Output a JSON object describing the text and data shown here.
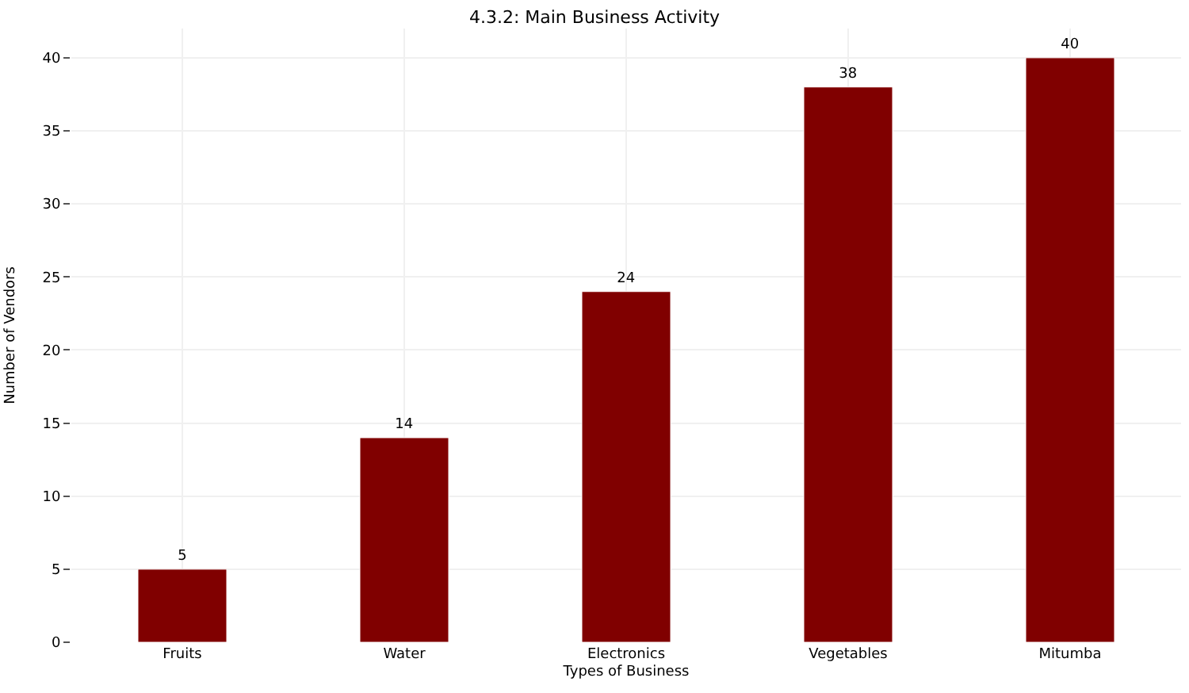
{
  "chart_data": {
    "type": "bar",
    "title": "4.3.2: Main Business Activity",
    "xlabel": "Types of Business",
    "ylabel": "Number of Vendors",
    "categories": [
      "Fruits",
      "Water",
      "Electronics",
      "Vegetables",
      "Mitumba"
    ],
    "values": [
      5,
      14,
      24,
      38,
      40
    ],
    "color": "#800000",
    "ylim": [
      0,
      42
    ],
    "yticks": [
      0,
      5,
      10,
      15,
      20,
      25,
      30,
      35,
      40
    ],
    "grid": true,
    "data_labels": true
  }
}
